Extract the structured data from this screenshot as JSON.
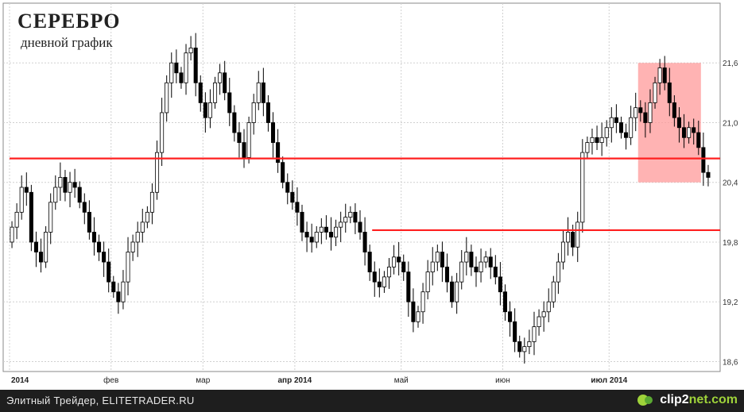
{
  "title": "СЕРЕБРО",
  "subtitle": "дневной график",
  "footer": {
    "caption": "Элитный Трейдер, ELITETRADER.RU",
    "brand_prefix": "clip2",
    "brand_suffix": "net.com"
  },
  "colors": {
    "up_candle": "#ffffff",
    "down_candle": "#000000",
    "level_line": "#ff2020",
    "highlight_zone": "#ff9999",
    "grid": "#d0d0d0"
  },
  "chart_data": {
    "type": "candlestick",
    "x_tick_labels": [
      "2014",
      "фев",
      "мар",
      "апр 2014",
      "май",
      "июн",
      "июл 2014"
    ],
    "y_tick_labels": [
      "18,6",
      "19,2",
      "19,8",
      "20,4",
      "21,0",
      "21,6"
    ],
    "y_ticks": [
      18.6,
      19.2,
      19.8,
      20.4,
      21.0,
      21.6
    ],
    "ylim": [
      18.5,
      22.2
    ],
    "n_bars": 145,
    "month_start_bars": [
      0,
      21,
      40,
      59,
      81,
      102,
      124
    ],
    "horizontal_levels": [
      {
        "value": 20.64,
        "from_bar": 0,
        "to_bar": 145
      },
      {
        "value": 19.92,
        "from_bar": 75,
        "to_bar": 145
      }
    ],
    "highlight_zone": {
      "from_bar": 130,
      "to_bar": 143,
      "y_low": 20.4,
      "y_high": 21.6
    },
    "closes": [
      19.95,
      20.1,
      20.35,
      20.3,
      19.8,
      19.7,
      19.6,
      19.9,
      20.2,
      20.35,
      20.45,
      20.3,
      20.4,
      20.35,
      20.2,
      20.1,
      19.9,
      19.8,
      19.7,
      19.6,
      19.4,
      19.3,
      19.2,
      19.4,
      19.7,
      19.8,
      19.9,
      20.0,
      20.1,
      20.3,
      20.7,
      21.1,
      21.4,
      21.6,
      21.5,
      21.4,
      21.7,
      21.75,
      21.4,
      21.2,
      21.05,
      21.2,
      21.4,
      21.5,
      21.3,
      21.1,
      20.9,
      20.8,
      20.65,
      21.0,
      21.2,
      21.4,
      21.2,
      21.0,
      20.8,
      20.6,
      20.4,
      20.3,
      20.2,
      20.1,
      19.9,
      19.85,
      19.8,
      19.9,
      19.95,
      19.9,
      19.85,
      19.95,
      20.0,
      20.05,
      20.1,
      20.0,
      19.9,
      19.7,
      19.5,
      19.4,
      19.35,
      19.45,
      19.55,
      19.65,
      19.6,
      19.5,
      19.2,
      19.0,
      19.1,
      19.3,
      19.5,
      19.6,
      19.7,
      19.55,
      19.4,
      19.2,
      19.4,
      19.6,
      19.7,
      19.55,
      19.5,
      19.6,
      19.65,
      19.55,
      19.45,
      19.3,
      19.1,
      19.0,
      18.8,
      18.7,
      18.75,
      18.8,
      18.95,
      19.05,
      19.1,
      19.2,
      19.4,
      19.6,
      19.8,
      19.9,
      19.75,
      20.0,
      20.7,
      20.8,
      20.85,
      20.8,
      20.85,
      20.95,
      21.05,
      21.0,
      20.9,
      20.85,
      21.05,
      21.15,
      21.1,
      21.0,
      21.2,
      21.4,
      21.55,
      21.4,
      21.2,
      21.05,
      20.95,
      20.85,
      20.95,
      20.9,
      20.75,
      20.5,
      20.45
    ],
    "opens": [
      19.8,
      19.95,
      20.1,
      20.35,
      20.3,
      19.8,
      19.7,
      19.6,
      19.9,
      20.2,
      20.35,
      20.45,
      20.3,
      20.4,
      20.35,
      20.2,
      20.1,
      19.9,
      19.8,
      19.7,
      19.6,
      19.4,
      19.3,
      19.2,
      19.4,
      19.7,
      19.8,
      19.9,
      20.0,
      20.1,
      20.3,
      20.7,
      21.1,
      21.4,
      21.6,
      21.5,
      21.4,
      21.7,
      21.75,
      21.4,
      21.2,
      21.05,
      21.2,
      21.4,
      21.5,
      21.3,
      21.1,
      20.9,
      20.8,
      20.65,
      21.0,
      21.2,
      21.4,
      21.2,
      21.0,
      20.8,
      20.6,
      20.4,
      20.3,
      20.2,
      20.1,
      19.9,
      19.85,
      19.8,
      19.9,
      19.95,
      19.9,
      19.85,
      19.95,
      20.0,
      20.05,
      20.1,
      20.0,
      19.9,
      19.7,
      19.5,
      19.4,
      19.35,
      19.45,
      19.55,
      19.65,
      19.6,
      19.5,
      19.2,
      19.0,
      19.1,
      19.3,
      19.5,
      19.6,
      19.7,
      19.55,
      19.4,
      19.2,
      19.4,
      19.6,
      19.7,
      19.55,
      19.5,
      19.6,
      19.65,
      19.55,
      19.45,
      19.3,
      19.1,
      19.0,
      18.8,
      18.7,
      18.75,
      18.8,
      18.95,
      19.05,
      19.1,
      19.2,
      19.4,
      19.6,
      19.8,
      19.9,
      19.75,
      20.0,
      20.7,
      20.8,
      20.85,
      20.8,
      20.85,
      20.95,
      21.05,
      21.0,
      20.9,
      20.85,
      21.05,
      21.15,
      21.1,
      21.0,
      21.2,
      21.4,
      21.55,
      21.4,
      21.2,
      21.05,
      20.95,
      20.85,
      20.95,
      20.9,
      20.75,
      20.5
    ]
  }
}
